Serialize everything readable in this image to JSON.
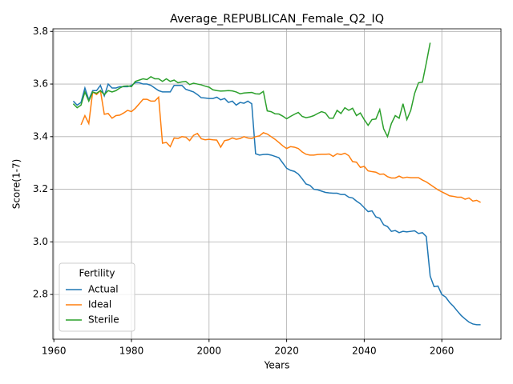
{
  "chart_data": {
    "type": "line",
    "title": "Average_REPUBLICAN_Female_Q2_IQ",
    "x_label": "Years",
    "y_label": "Score(1-7)",
    "x": [
      1965,
      1966,
      1967,
      1968,
      1969,
      1970,
      1971,
      1972,
      1973,
      1974,
      1975,
      1976,
      1977,
      1978,
      1979,
      1980,
      1981,
      1982,
      1983,
      1984,
      1985,
      1986,
      1987,
      1988,
      1989,
      1990,
      1991,
      1992,
      1993,
      1994,
      1995,
      1996,
      1997,
      1998,
      1999,
      2000,
      2001,
      2002,
      2003,
      2004,
      2005,
      2006,
      2007,
      2008,
      2009,
      2010,
      2011,
      2012,
      2013,
      2014,
      2015,
      2016,
      2017,
      2018,
      2019,
      2020,
      2021,
      2022,
      2023,
      2024,
      2025,
      2026,
      2027,
      2028,
      2029,
      2030,
      2031,
      2032,
      2033,
      2034,
      2035,
      2036,
      2037,
      2038,
      2039,
      2040,
      2041,
      2042,
      2043,
      2044,
      2045,
      2046,
      2047,
      2048,
      2049,
      2050,
      2051,
      2052,
      2053,
      2054,
      2055,
      2056,
      2057,
      2058,
      2059,
      2060,
      2061,
      2062,
      2063,
      2064,
      2065,
      2066,
      2067,
      2068,
      2069,
      2070
    ],
    "series": [
      {
        "name": "Actual",
        "color": "#1f77b4",
        "values": [
          3.535,
          3.52,
          3.53,
          3.585,
          3.54,
          3.575,
          3.575,
          3.595,
          3.555,
          3.6,
          3.585,
          3.585,
          3.59,
          3.59,
          3.59,
          3.595,
          3.605,
          3.605,
          3.6,
          3.6,
          3.595,
          3.585,
          3.575,
          3.57,
          3.57,
          3.57,
          3.595,
          3.595,
          3.595,
          3.58,
          3.575,
          3.57,
          3.56,
          3.548,
          3.547,
          3.545,
          3.545,
          3.55,
          3.54,
          3.545,
          3.53,
          3.535,
          3.52,
          3.53,
          3.527,
          3.535,
          3.525,
          3.335,
          3.33,
          3.332,
          3.333,
          3.33,
          3.325,
          3.32,
          3.3,
          3.28,
          3.272,
          3.268,
          3.258,
          3.24,
          3.22,
          3.215,
          3.2,
          3.198,
          3.193,
          3.188,
          3.186,
          3.185,
          3.185,
          3.18,
          3.18,
          3.17,
          3.167,
          3.155,
          3.145,
          3.13,
          3.115,
          3.118,
          3.095,
          3.09,
          3.065,
          3.058,
          3.04,
          3.043,
          3.035,
          3.04,
          3.038,
          3.04,
          3.042,
          3.032,
          3.035,
          3.02,
          2.87,
          2.83,
          2.832,
          2.8,
          2.79,
          2.77,
          2.755,
          2.737,
          2.72,
          2.707,
          2.695,
          2.688,
          2.685,
          2.685
        ]
      },
      {
        "name": "Ideal",
        "color": "#ff7f0e",
        "values": [
          null,
          null,
          3.445,
          3.48,
          3.45,
          3.57,
          3.56,
          3.575,
          3.485,
          3.488,
          3.47,
          3.48,
          3.482,
          3.49,
          3.5,
          3.495,
          3.508,
          3.525,
          3.542,
          3.542,
          3.535,
          3.535,
          3.55,
          3.375,
          3.378,
          3.362,
          3.395,
          3.393,
          3.4,
          3.398,
          3.385,
          3.405,
          3.412,
          3.392,
          3.388,
          3.39,
          3.388,
          3.387,
          3.36,
          3.385,
          3.388,
          3.395,
          3.39,
          3.393,
          3.4,
          3.395,
          3.393,
          3.4,
          3.403,
          3.415,
          3.41,
          3.4,
          3.39,
          3.378,
          3.365,
          3.355,
          3.362,
          3.36,
          3.355,
          3.342,
          3.333,
          3.33,
          3.33,
          3.332,
          3.333,
          3.333,
          3.334,
          3.325,
          3.335,
          3.332,
          3.337,
          3.328,
          3.305,
          3.303,
          3.283,
          3.287,
          3.27,
          3.267,
          3.265,
          3.257,
          3.258,
          3.248,
          3.243,
          3.243,
          3.25,
          3.243,
          3.246,
          3.244,
          3.244,
          3.244,
          3.235,
          3.228,
          3.218,
          3.208,
          3.198,
          3.19,
          3.183,
          3.175,
          3.173,
          3.17,
          3.17,
          3.162,
          3.167,
          3.155,
          3.158,
          3.15
        ]
      },
      {
        "name": "Sterile",
        "color": "#2ca02c",
        "values": [
          3.525,
          3.51,
          3.52,
          3.57,
          3.535,
          3.57,
          3.565,
          3.575,
          3.56,
          3.575,
          3.57,
          3.575,
          3.585,
          3.592,
          3.593,
          3.59,
          3.61,
          3.615,
          3.62,
          3.617,
          3.628,
          3.62,
          3.62,
          3.61,
          3.62,
          3.61,
          3.615,
          3.605,
          3.608,
          3.61,
          3.598,
          3.603,
          3.6,
          3.597,
          3.592,
          3.588,
          3.578,
          3.575,
          3.573,
          3.574,
          3.575,
          3.574,
          3.57,
          3.563,
          3.566,
          3.567,
          3.568,
          3.563,
          3.562,
          3.572,
          3.498,
          3.495,
          3.487,
          3.486,
          3.478,
          3.468,
          3.477,
          3.485,
          3.492,
          3.477,
          3.472,
          3.475,
          3.48,
          3.488,
          3.495,
          3.49,
          3.47,
          3.47,
          3.5,
          3.488,
          3.51,
          3.5,
          3.508,
          3.48,
          3.49,
          3.465,
          3.443,
          3.465,
          3.467,
          3.503,
          3.43,
          3.4,
          3.45,
          3.48,
          3.47,
          3.525,
          3.465,
          3.5,
          3.565,
          3.605,
          3.607,
          3.68,
          3.757,
          null,
          null,
          null,
          null,
          null,
          null,
          null,
          null,
          null,
          null,
          null,
          null,
          null
        ]
      }
    ],
    "xlim": [
      1959.75,
      2075.25
    ],
    "ylim": [
      2.63,
      3.81
    ],
    "xticks": [
      1960,
      1980,
      2000,
      2020,
      2040,
      2060
    ],
    "yticks": [
      2.8,
      {
        "value": 3,
        "label": "3.0"
      },
      3.2,
      3.4,
      3.6,
      3.8
    ],
    "grid": true,
    "legend_title": "Fertility",
    "legend_position": "lower left"
  }
}
